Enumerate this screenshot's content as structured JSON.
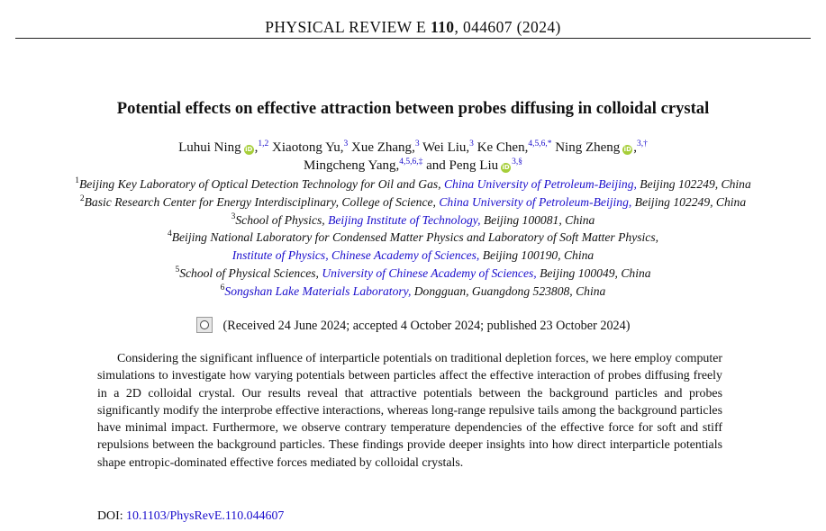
{
  "header": {
    "journal": "PHYSICAL REVIEW E",
    "volume": "110",
    "citation": ", 044607 (2024)"
  },
  "title": "Potential effects on effective attraction between probes diffusing in colloidal crystal",
  "authors": [
    {
      "name": "Luhui Ning",
      "orcid": true,
      "sup": "1,2"
    },
    {
      "name": "Xiaotong Yu",
      "orcid": false,
      "sup": "3"
    },
    {
      "name": "Xue Zhang",
      "orcid": false,
      "sup": "3"
    },
    {
      "name": "Wei Liu",
      "orcid": false,
      "sup": "3"
    },
    {
      "name": "Ke Chen",
      "orcid": false,
      "sup": "4,5,6,*"
    },
    {
      "name": "Ning Zheng",
      "orcid": true,
      "sup": "3,†"
    },
    {
      "name": "Mingcheng Yang",
      "orcid": false,
      "sup": "4,5,6,‡"
    },
    {
      "name": "Peng Liu",
      "orcid": true,
      "sup": "3,§"
    }
  ],
  "authors_connector": "and",
  "affiliations": {
    "a1": {
      "num": "1",
      "pre": "Beijing Key Laboratory of Optical Detection Technology for Oil and Gas, ",
      "link": "China University of Petroleum-Beijing,",
      "post": " Beijing 102249, China"
    },
    "a2": {
      "num": "2",
      "pre": "Basic Research Center for Energy Interdisciplinary, College of Science, ",
      "link": "China University of Petroleum-Beijing,",
      "post": " Beijing 102249, China"
    },
    "a3": {
      "num": "3",
      "pre": "School of Physics, ",
      "link": "Beijing Institute of Technology,",
      "post": " Beijing 100081, China"
    },
    "a4": {
      "num": "4",
      "line1": "Beijing National Laboratory for Condensed Matter Physics and Laboratory of Soft Matter Physics,",
      "link": "Institute of Physics, Chinese Academy of Sciences,",
      "post": " Beijing 100190, China"
    },
    "a5": {
      "num": "5",
      "pre": "School of Physical Sciences, ",
      "link": "University of Chinese Academy of Sciences,",
      "post": " Beijing 100049, China"
    },
    "a6": {
      "num": "6",
      "link": "Songshan Lake Materials Laboratory,",
      "post": " Dongguan, Guangdong 523808, China"
    }
  },
  "received": "(Received 24 June 2024; accepted 4 October 2024; published 23 October 2024)",
  "abstract": "Considering the significant influence of interparticle potentials on traditional depletion forces, we here employ computer simulations to investigate how varying potentials between particles affect the effective interaction of probes diffusing freely in a 2D colloidal crystal. Our results reveal that attractive potentials between the background particles and probes significantly modify the interprobe effective interactions, whereas long-range repulsive tails among the background particles have minimal impact. Furthermore, we observe contrary temperature dependencies of the effective force for soft and stiff repulsions between the background particles. These findings provide deeper insights into how direct interparticle potentials shape entropic-dominated effective forces mediated by colloidal crystals.",
  "doi": {
    "label": "DOI: ",
    "value": "10.1103/PhysRevE.110.044607"
  },
  "colors": {
    "link": "#1a0dcc",
    "orcid": "#a6ce39"
  },
  "icons": {
    "orcid": "orcid-icon",
    "crossmark": "check-for-updates-icon"
  }
}
